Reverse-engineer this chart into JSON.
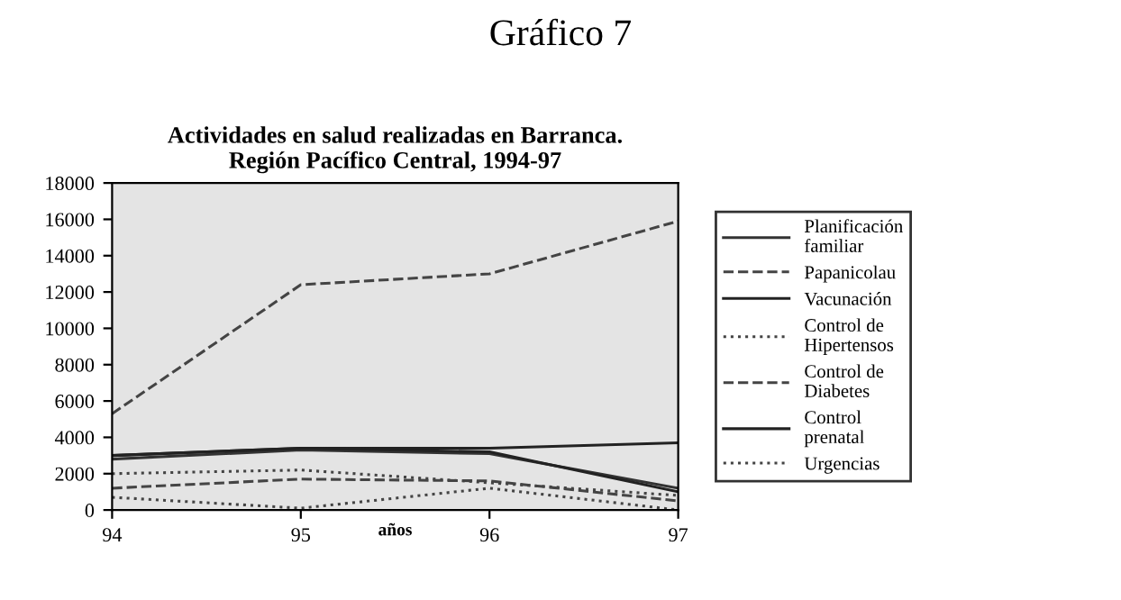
{
  "chart_data": {
    "type": "line",
    "title": "Gráfico 7",
    "subtitle": "Actividades en salud realizadas en Barranca.\nRegión Pacífico Central, 1994-97",
    "xlabel": "años",
    "x": [
      94,
      95,
      96,
      97
    ],
    "xlim": [
      94,
      97
    ],
    "xticks": [
      94,
      95,
      96,
      97
    ],
    "ylim": [
      0,
      18000
    ],
    "yticks": [
      0,
      2000,
      4000,
      6000,
      8000,
      10000,
      12000,
      14000,
      16000,
      18000
    ],
    "grid": false,
    "legend": "right",
    "marker": "none",
    "series": [
      {
        "name": "Planificación\nfamiliar",
        "color": "#333333",
        "line_style": "solid",
        "values": [
          2800,
          3300,
          3100,
          1200
        ]
      },
      {
        "name": "Papanicolau",
        "color": "#444444",
        "line_style": "dashed",
        "values": [
          5300,
          12400,
          13000,
          15900
        ]
      },
      {
        "name": "Vacunación",
        "color": "#222222",
        "line_style": "solid",
        "values": [
          3000,
          3400,
          3400,
          3700
        ]
      },
      {
        "name": "Control de\nHipertensos",
        "color": "#444444",
        "line_style": "dotted",
        "values": [
          2000,
          2200,
          1500,
          800
        ]
      },
      {
        "name": "Control de\nDiabetes",
        "color": "#444444",
        "line_style": "dashed",
        "values": [
          1200,
          1700,
          1600,
          500
        ]
      },
      {
        "name": "Control\nprenatal",
        "color": "#222222",
        "line_style": "solid",
        "values": [
          3000,
          3400,
          3200,
          1000
        ]
      },
      {
        "name": "Urgencias",
        "color": "#444444",
        "line_style": "dotted",
        "values": [
          700,
          100,
          1200,
          0
        ]
      }
    ]
  }
}
